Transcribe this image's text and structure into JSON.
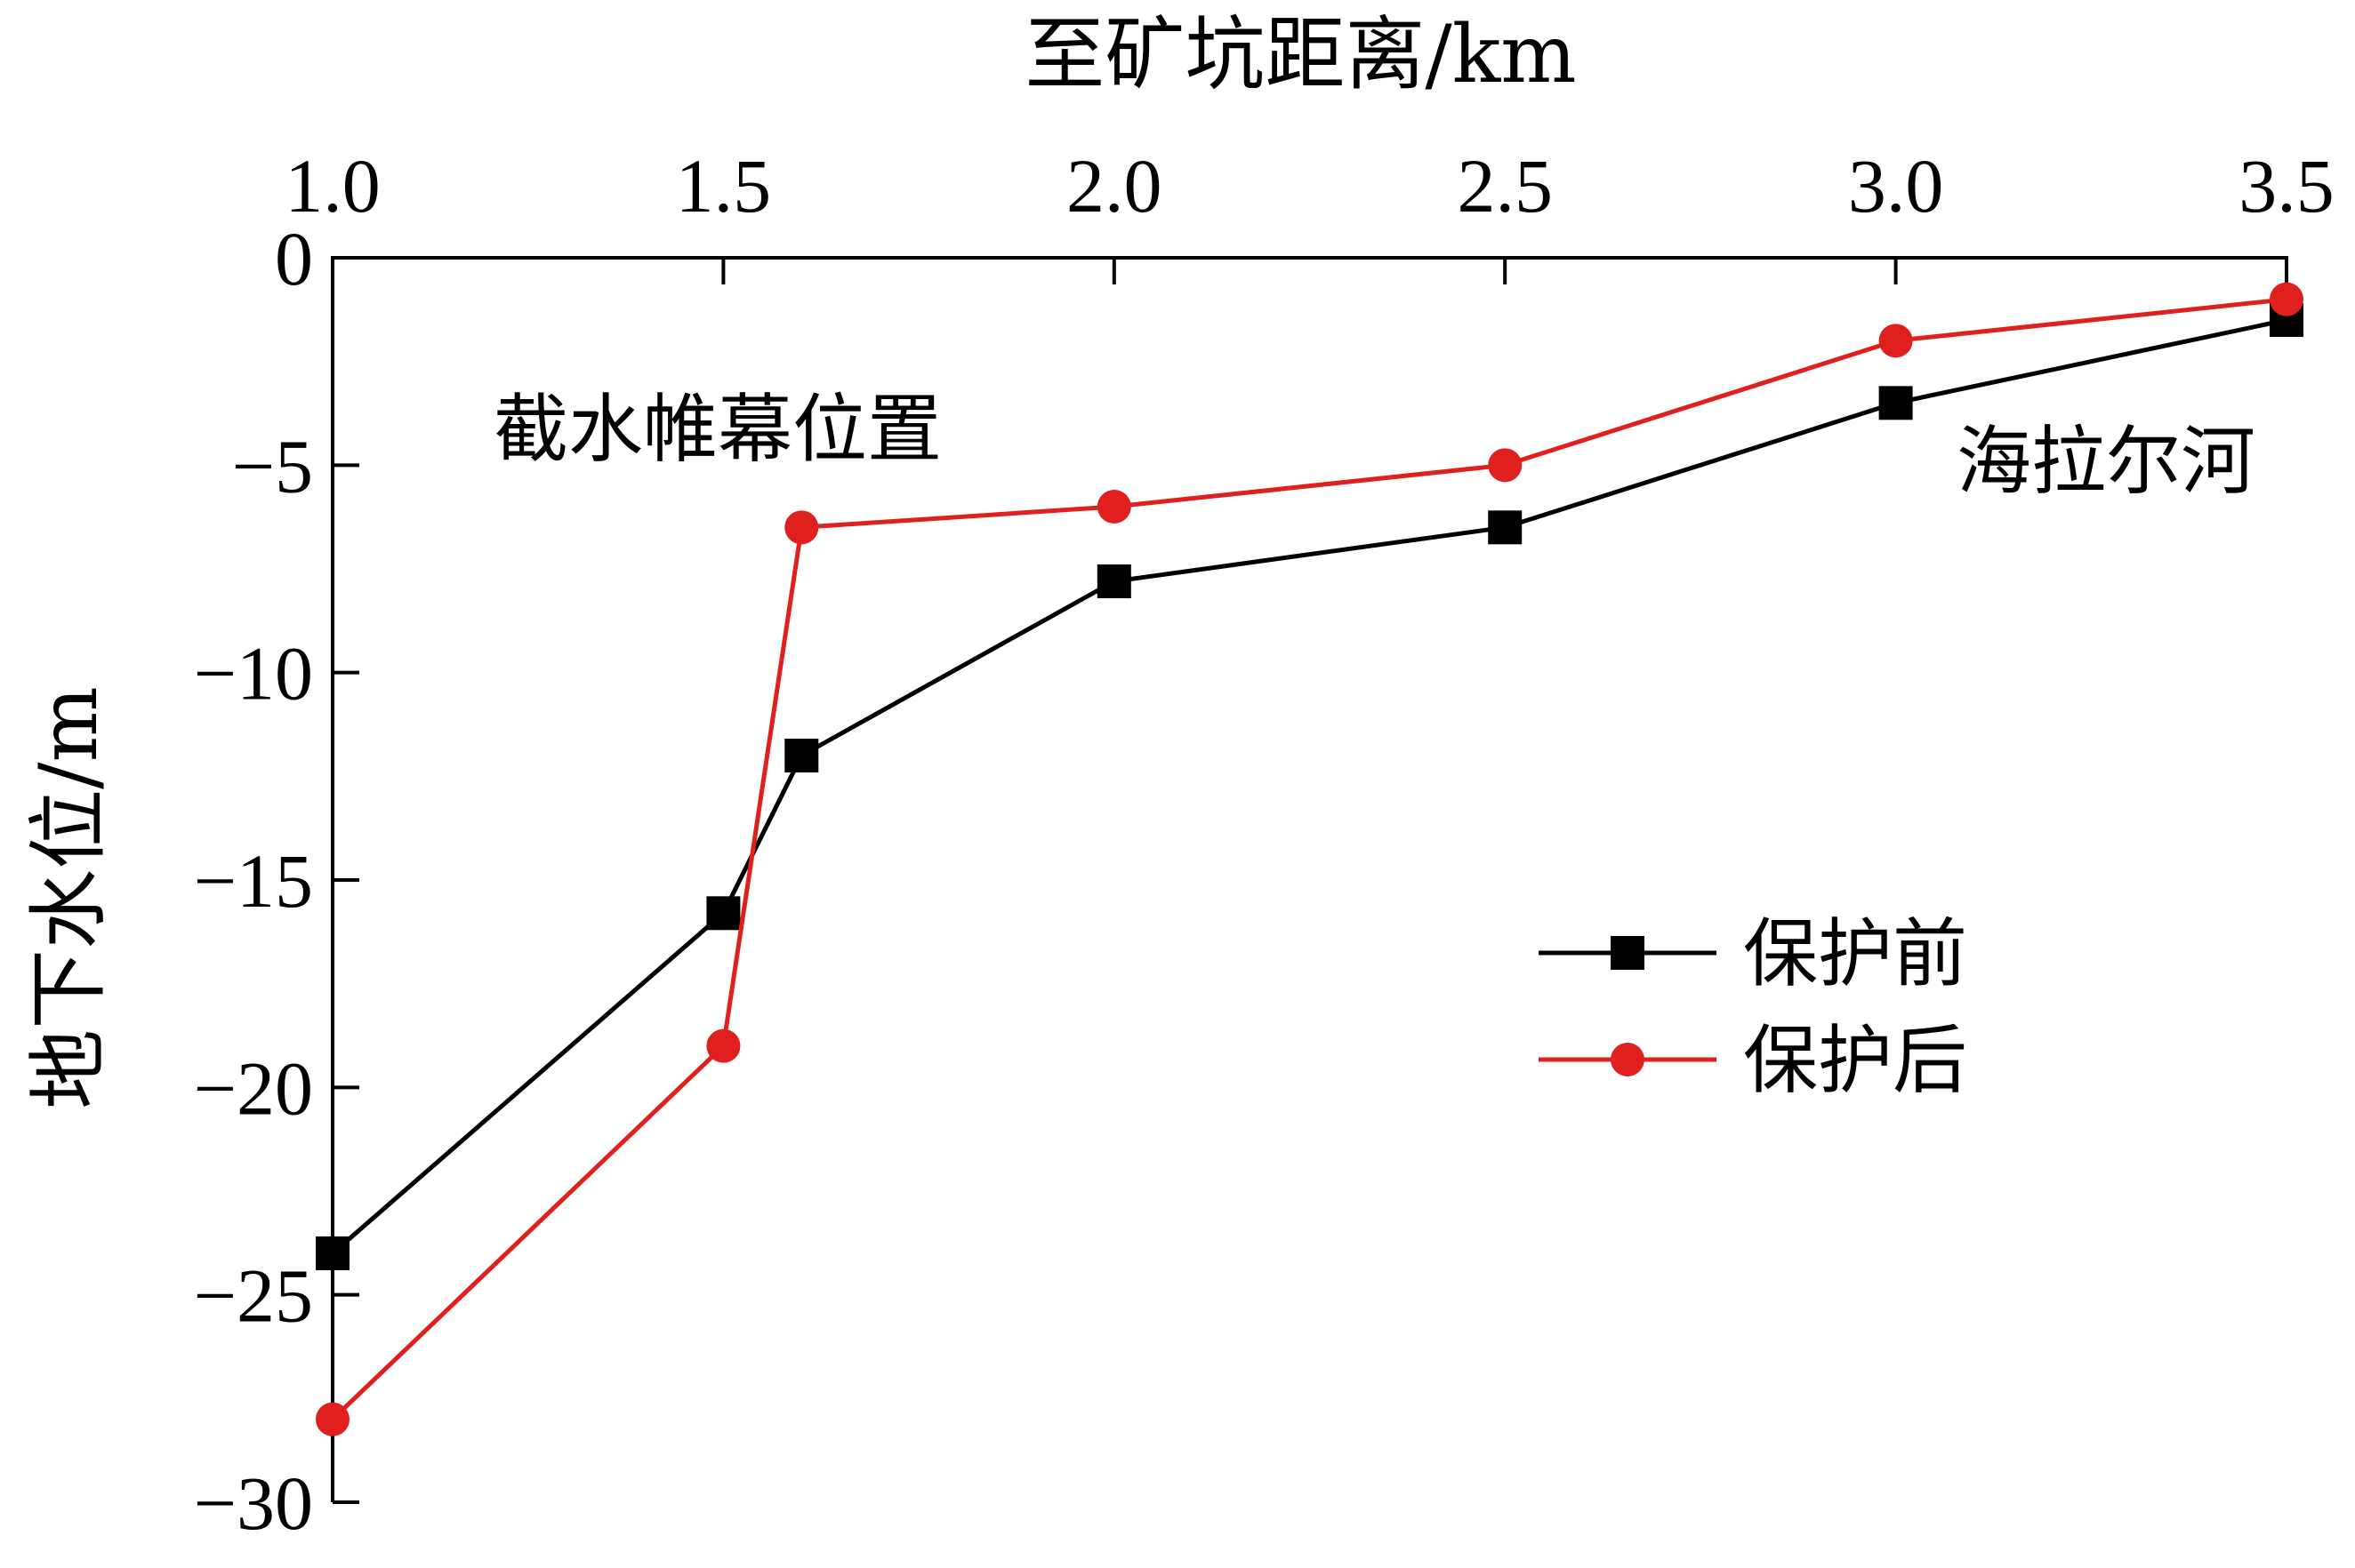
{
  "chart_data": {
    "type": "line",
    "xlabel": "至矿坑距离/km",
    "ylabel": "地下水位/m",
    "x_axis_position": "top",
    "xlim": [
      1.0,
      3.5
    ],
    "ylim": [
      -30,
      0
    ],
    "x_ticks": [
      "1.0",
      "1.5",
      "2.0",
      "2.5",
      "3.0",
      "3.5"
    ],
    "y_ticks": [
      "0",
      "−5",
      "−10",
      "−15",
      "−20",
      "−25",
      "−30"
    ],
    "grid": false,
    "legend_position": "right",
    "series": [
      {
        "name": "保护前",
        "color": "#000000",
        "marker": "square",
        "x": [
          1.0,
          1.5,
          1.6,
          2.0,
          2.5,
          3.0,
          3.5
        ],
        "y": [
          -24.0,
          -15.8,
          -12.0,
          -7.8,
          -6.5,
          -3.5,
          -1.5
        ]
      },
      {
        "name": "保护后",
        "color": "#e0201f",
        "marker": "circle",
        "x": [
          1.0,
          1.5,
          1.6,
          2.0,
          2.5,
          3.0,
          3.5
        ],
        "y": [
          -28.0,
          -19.0,
          -6.5,
          -6.0,
          -5.0,
          -2.0,
          -1.0
        ]
      }
    ],
    "annotations": [
      {
        "text": "截水帷幕位置",
        "anchor": "near x=1.6, upper area"
      },
      {
        "text": "海拉尔河",
        "anchor": "near x=3.5, upper right"
      }
    ]
  }
}
